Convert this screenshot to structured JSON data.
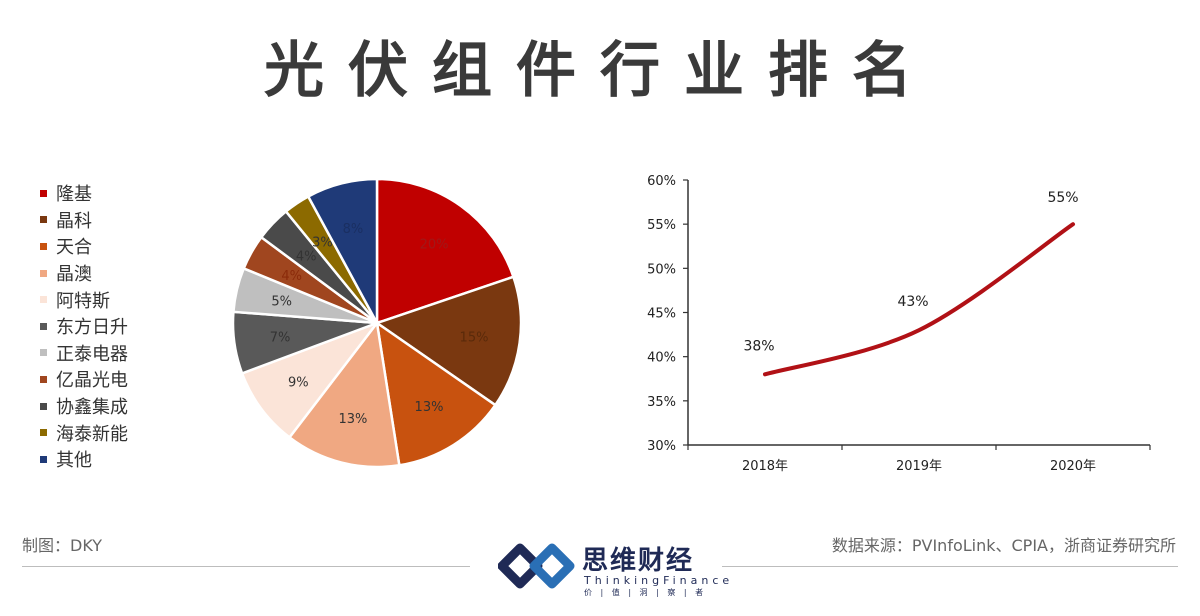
{
  "title": "光伏组件行业排名",
  "footer": {
    "author": "制图：DKY",
    "source": "数据来源：PVInfoLink、CPIA，浙商证券研究所",
    "logo_cn": "思维财经",
    "logo_en": "ThinkingFinance",
    "logo_tagline": "价 | 值 | 洞 | 察 | 者"
  },
  "colors": {
    "line": "#b11116",
    "axis": "#333333"
  },
  "chart_data": [
    {
      "type": "pie",
      "title": "",
      "labels": [
        "隆基",
        "晶科",
        "天合",
        "晶澳",
        "阿特斯",
        "东方日升",
        "正泰电器",
        "亿晶光电",
        "协鑫集成",
        "海泰新能",
        "其他"
      ],
      "values": [
        20,
        15,
        13,
        13,
        9,
        7,
        5,
        4,
        4,
        3,
        8
      ],
      "value_labels": [
        "20%",
        "15%",
        "13%",
        "13%",
        "9%",
        "7%",
        "5%",
        "4%",
        "4%",
        "3%",
        "8%"
      ],
      "colors": [
        "#c00000",
        "#7a3810",
        "#c8520f",
        "#f0a882",
        "#fbe4d8",
        "#595959",
        "#bfbfbf",
        "#a0461f",
        "#4a4a4a",
        "#8c6a00",
        "#1f3a78"
      ],
      "label_colors": [
        "#a01818",
        "#5a2a0a",
        "#333333",
        "#333333",
        "#333333",
        "#333333",
        "#333333",
        "#8a2a0a",
        "#333333",
        "#333333",
        "#1a2f62"
      ],
      "legend_position": "left"
    },
    {
      "type": "line",
      "title": "",
      "x": [
        "2018年",
        "2019年",
        "2020年"
      ],
      "y": [
        38,
        43,
        55
      ],
      "data_labels": [
        "38%",
        "43%",
        "55%"
      ],
      "ylim": [
        30,
        60
      ],
      "yticks": [
        "30%",
        "35%",
        "40%",
        "45%",
        "50%",
        "55%",
        "60%"
      ],
      "xlabel": "",
      "ylabel": ""
    }
  ]
}
